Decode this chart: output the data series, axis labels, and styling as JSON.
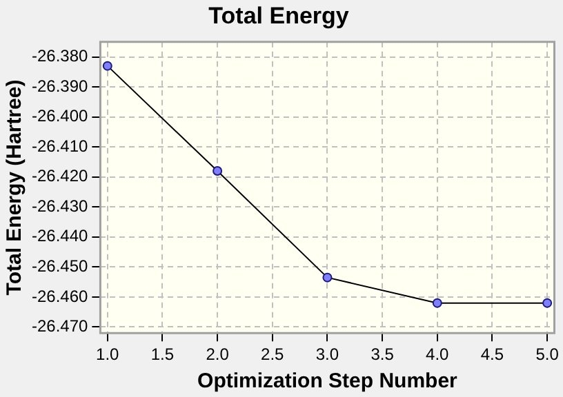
{
  "chart_data": {
    "type": "line",
    "title": "Total Energy",
    "xlabel": "Optimization Step Number",
    "ylabel": "Total Energy (Hartree)",
    "x": [
      1,
      2,
      3,
      4,
      5
    ],
    "series": [
      {
        "color": "#000000",
        "values": [
          -26.383,
          -26.418,
          -26.4535,
          -26.462,
          -26.462
        ]
      }
    ],
    "marker": "circle",
    "line_style": "solid",
    "grid": true,
    "legend": false,
    "xlim": [
      0.935,
      5.065
    ],
    "xticks": [
      {
        "value": 1,
        "label": "1.0"
      },
      {
        "value": 1.5,
        "label": "1.5"
      },
      {
        "value": 2,
        "label": "2.0"
      },
      {
        "value": 2.5,
        "label": "2.5"
      },
      {
        "value": 3,
        "label": "3.0"
      },
      {
        "value": 3.5,
        "label": "3.5"
      },
      {
        "value": 4,
        "label": "4.0"
      },
      {
        "value": 4.5,
        "label": "4.5"
      },
      {
        "value": 5,
        "label": "5.0"
      }
    ],
    "ylim": [
      -26.472,
      -26.375
    ],
    "yticks": [
      {
        "value": -26.38,
        "label": "-26.380"
      },
      {
        "value": -26.39,
        "label": "-26.390"
      },
      {
        "value": -26.4,
        "label": "-26.400"
      },
      {
        "value": -26.41,
        "label": "-26.410"
      },
      {
        "value": -26.42,
        "label": "-26.420"
      },
      {
        "value": -26.43,
        "label": "-26.430"
      },
      {
        "value": -26.44,
        "label": "-26.440"
      },
      {
        "value": -26.45,
        "label": "-26.450"
      },
      {
        "value": -26.46,
        "label": "-26.460"
      },
      {
        "value": -26.47,
        "label": "-26.470"
      }
    ]
  }
}
